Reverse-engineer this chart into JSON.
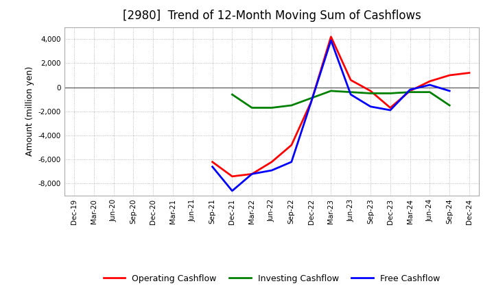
{
  "title": "[2980]  Trend of 12-Month Moving Sum of Cashflows",
  "ylabel": "Amount (million yen)",
  "xlabels": [
    "Dec-19",
    "Mar-20",
    "Jun-20",
    "Sep-20",
    "Dec-20",
    "Mar-21",
    "Jun-21",
    "Sep-21",
    "Dec-21",
    "Mar-22",
    "Jun-22",
    "Sep-22",
    "Dec-22",
    "Mar-23",
    "Jun-23",
    "Sep-23",
    "Dec-23",
    "Mar-24",
    "Jun-24",
    "Sep-24",
    "Dec-24"
  ],
  "ylim": [
    -9000,
    5000
  ],
  "yticks": [
    -8000,
    -6000,
    -4000,
    -2000,
    0,
    2000,
    4000
  ],
  "operating": [
    null,
    null,
    null,
    null,
    null,
    null,
    null,
    -6200,
    -7400,
    -7200,
    -6200,
    -4800,
    -1200,
    4200,
    600,
    -300,
    -1700,
    -300,
    500,
    1000,
    1200
  ],
  "investing": [
    null,
    null,
    null,
    null,
    null,
    null,
    null,
    null,
    -600,
    -1700,
    -1700,
    -1500,
    -900,
    -300,
    -400,
    -500,
    -500,
    -400,
    -400,
    -1500,
    null
  ],
  "free": [
    null,
    null,
    null,
    null,
    null,
    null,
    null,
    -6600,
    -8600,
    -7200,
    -6900,
    -6200,
    -1200,
    3900,
    -600,
    -1600,
    -1900,
    -200,
    200,
    -300,
    null
  ],
  "operating_color": "#ff0000",
  "investing_color": "#008000",
  "free_color": "#0000ff",
  "line_width": 2.0,
  "grid_color": "#aaaaaa",
  "background_color": "#ffffff",
  "title_fontsize": 12,
  "label_fontsize": 9,
  "tick_fontsize": 7.5
}
